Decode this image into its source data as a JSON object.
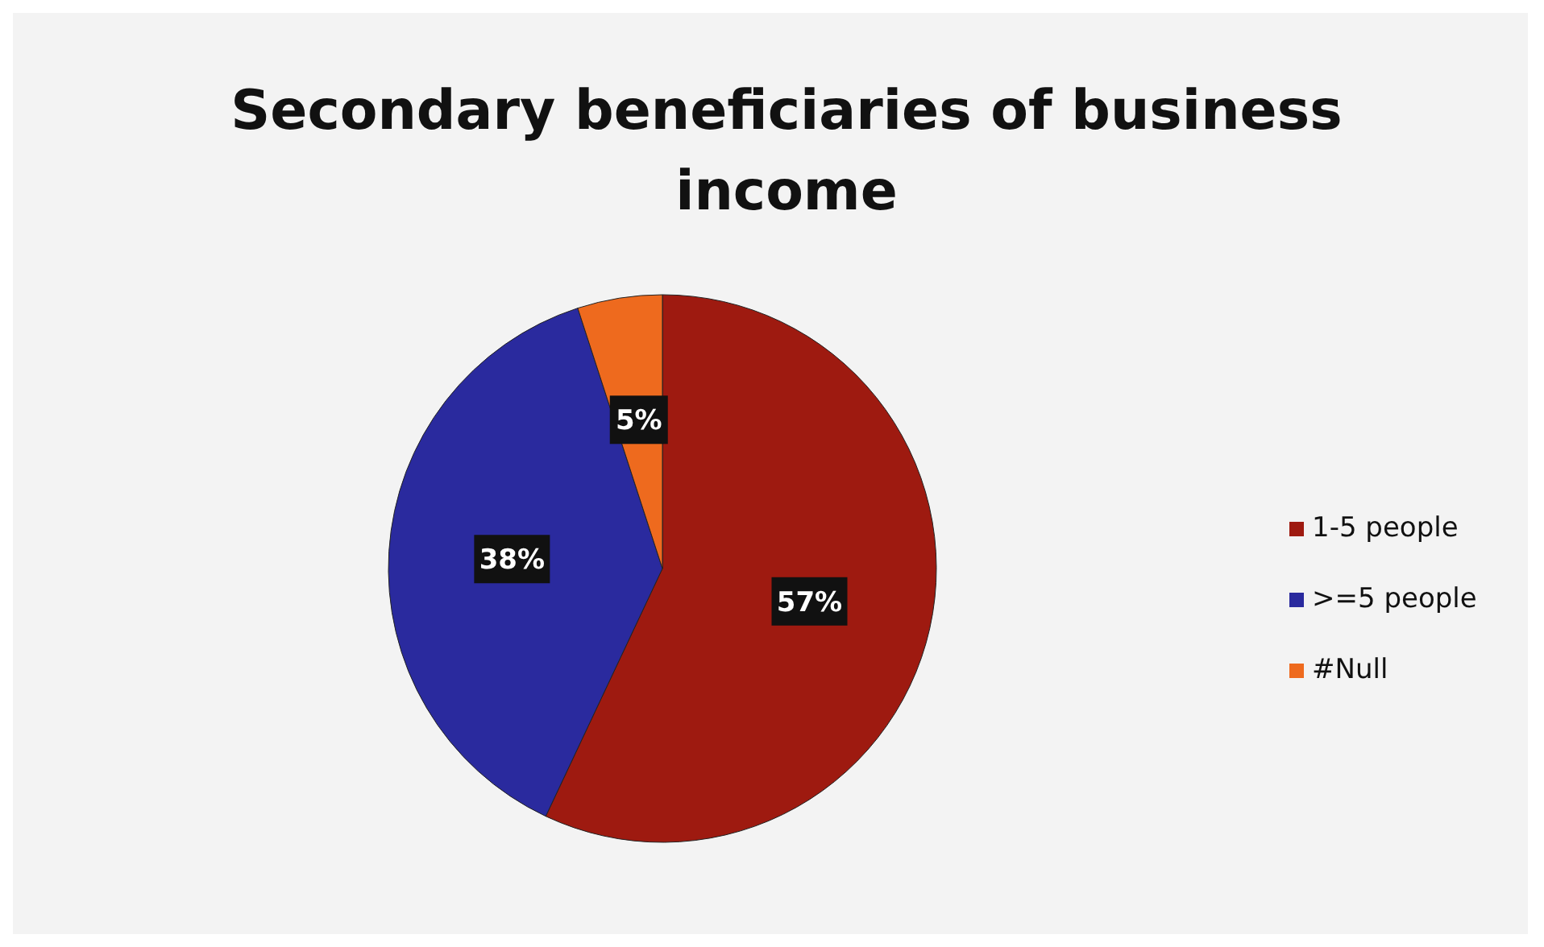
{
  "chart_data": {
    "type": "pie",
    "title": "Secondary beneficiaries of business income",
    "categories": [
      "1-5 people",
      ">=5 people",
      "#Null"
    ],
    "values": [
      57,
      38,
      5
    ],
    "colors": [
      "#9e1a10",
      "#2a2a9e",
      "#ee6a1e"
    ],
    "value_labels": [
      "57%",
      "38%",
      "5%"
    ],
    "legend": "right"
  }
}
